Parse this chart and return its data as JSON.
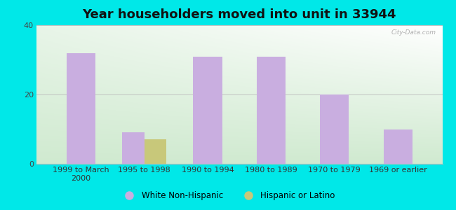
{
  "title": "Year householders moved into unit in 33944",
  "categories": [
    "1999 to March\n2000",
    "1995 to 1998",
    "1990 to 1994",
    "1980 to 1989",
    "1970 to 1979",
    "1969 or earlier"
  ],
  "white_values": [
    32,
    9,
    31,
    31,
    20,
    10
  ],
  "hispanic_values": [
    0,
    7,
    0,
    0,
    0,
    0
  ],
  "white_color": "#c9aee0",
  "hispanic_color": "#c8c87a",
  "ylim": [
    0,
    40
  ],
  "yticks": [
    0,
    20,
    40
  ],
  "background_outer": "#00e8e8",
  "background_inner_topleft": "#e8f5e8",
  "background_inner_topright": "#ffffff",
  "background_inner_bottom": "#d0ead0",
  "bar_width": 0.35,
  "legend_white": "White Non-Hispanic",
  "legend_hispanic": "Hispanic or Latino",
  "watermark": "City-Data.com",
  "title_fontsize": 13,
  "tick_fontsize": 8
}
